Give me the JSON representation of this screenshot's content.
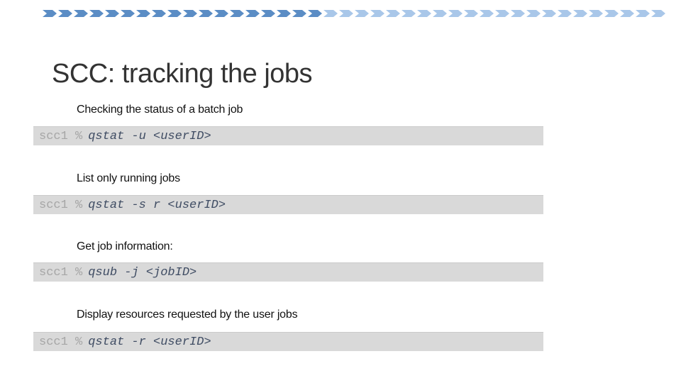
{
  "slide": {
    "title": "SCC: tracking the jobs"
  },
  "decor": {
    "chevron_count": 40,
    "chevron_dark_count": 18,
    "chevron_dark_color": "#5b8dc5",
    "chevron_light_color": "#a9c7e9"
  },
  "colors": {
    "title_color": "#333333",
    "label_color": "#111111",
    "code_bg": "#d9d9d9",
    "prompt_color": "#a6a6a6",
    "command_color": "#3f4c63"
  },
  "sections": [
    {
      "label": "Checking the status of a batch job",
      "prompt": "scc1 %",
      "command": "qstat -u <userID>"
    },
    {
      "label": "List only running jobs",
      "prompt": "scc1 %",
      "command": "qstat -s r <userID>"
    },
    {
      "label": "Get job information:",
      "prompt": "scc1 %",
      "command": "qsub -j <jobID>"
    },
    {
      "label": "Display resources requested by the user jobs",
      "prompt": "scc1 %",
      "command": "qstat -r <userID>"
    }
  ]
}
